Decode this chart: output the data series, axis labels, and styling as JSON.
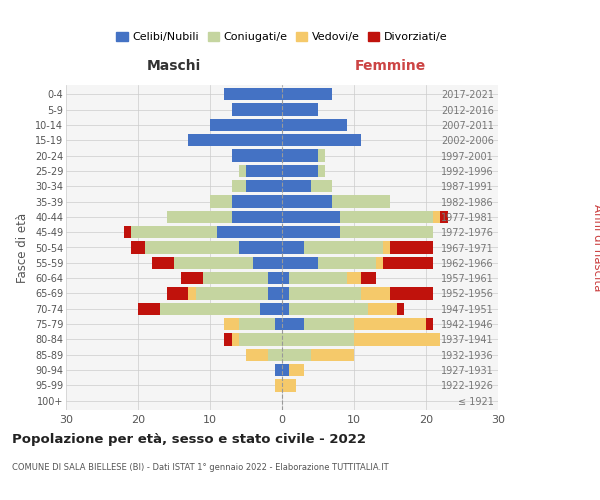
{
  "age_groups": [
    "100+",
    "95-99",
    "90-94",
    "85-89",
    "80-84",
    "75-79",
    "70-74",
    "65-69",
    "60-64",
    "55-59",
    "50-54",
    "45-49",
    "40-44",
    "35-39",
    "30-34",
    "25-29",
    "20-24",
    "15-19",
    "10-14",
    "5-9",
    "0-4"
  ],
  "birth_years": [
    "≤ 1921",
    "1922-1926",
    "1927-1931",
    "1932-1936",
    "1937-1941",
    "1942-1946",
    "1947-1951",
    "1952-1956",
    "1957-1961",
    "1962-1966",
    "1967-1971",
    "1972-1976",
    "1977-1981",
    "1982-1986",
    "1987-1991",
    "1992-1996",
    "1997-2001",
    "2002-2006",
    "2007-2011",
    "2012-2016",
    "2017-2021"
  ],
  "males": {
    "celibi": [
      0,
      0,
      1,
      0,
      0,
      1,
      3,
      2,
      2,
      4,
      6,
      9,
      7,
      7,
      5,
      5,
      7,
      13,
      10,
      7,
      8
    ],
    "coniugati": [
      0,
      0,
      0,
      2,
      6,
      5,
      14,
      10,
      9,
      11,
      13,
      12,
      9,
      3,
      2,
      1,
      0,
      0,
      0,
      0,
      0
    ],
    "vedovi": [
      0,
      1,
      0,
      3,
      1,
      2,
      0,
      1,
      0,
      0,
      0,
      0,
      0,
      0,
      0,
      0,
      0,
      0,
      0,
      0,
      0
    ],
    "divorziati": [
      0,
      0,
      0,
      0,
      1,
      0,
      3,
      3,
      3,
      3,
      2,
      1,
      0,
      0,
      0,
      0,
      0,
      0,
      0,
      0,
      0
    ]
  },
  "females": {
    "celibi": [
      0,
      0,
      1,
      0,
      0,
      3,
      1,
      1,
      1,
      5,
      3,
      8,
      8,
      7,
      4,
      5,
      5,
      11,
      9,
      5,
      7
    ],
    "coniugati": [
      0,
      0,
      0,
      4,
      10,
      7,
      11,
      10,
      8,
      8,
      11,
      13,
      13,
      8,
      3,
      1,
      1,
      0,
      0,
      0,
      0
    ],
    "vedovi": [
      0,
      2,
      2,
      6,
      12,
      10,
      4,
      4,
      2,
      1,
      1,
      0,
      1,
      0,
      0,
      0,
      0,
      0,
      0,
      0,
      0
    ],
    "divorziati": [
      0,
      0,
      0,
      0,
      0,
      1,
      1,
      6,
      2,
      7,
      6,
      0,
      1,
      0,
      0,
      0,
      0,
      0,
      0,
      0,
      0
    ]
  },
  "colors": {
    "celibi": "#4472c4",
    "coniugati": "#c5d5a0",
    "vedovi": "#f5c96a",
    "divorziati": "#c0120c"
  },
  "legend_labels": [
    "Celibi/Nubili",
    "Coniugati/e",
    "Vedovi/e",
    "Divorziati/e"
  ],
  "title": "Popolazione per età, sesso e stato civile - 2022",
  "subtitle": "COMUNE DI SALA BIELLESE (BI) - Dati ISTAT 1° gennaio 2022 - Elaborazione TUTTITALIA.IT",
  "xlabel_left": "Maschi",
  "xlabel_right": "Femmine",
  "ylabel_left": "Fasce di età",
  "ylabel_right": "Anni di nascita",
  "xlim": 30,
  "background_color": "#f5f5f5",
  "grid_color": "#cccccc"
}
